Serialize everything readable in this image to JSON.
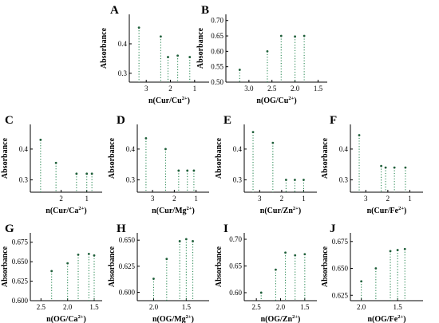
{
  "chart_data": [
    {
      "panel": "A",
      "type": "scatter",
      "xlabel": "n(Cur/Cu",
      "xlabel_sup": "2+",
      "xlabel_end": ")",
      "ylabel": "Absorbance",
      "xlim": [
        3.7,
        0.4
      ],
      "xreverse": true,
      "ylim": [
        0.27,
        0.5
      ],
      "xticks": [
        3,
        2,
        1
      ],
      "yticks": [
        0.3,
        0.4
      ],
      "x": [
        3.3,
        2.4,
        2.1,
        1.7,
        1.2
      ],
      "y": [
        0.455,
        0.425,
        0.355,
        0.36,
        0.355
      ],
      "color": "#2e8b57"
    },
    {
      "panel": "B",
      "type": "scatter",
      "xlabel": "n(OG/Cu",
      "xlabel_sup": "2+",
      "xlabel_end": ")",
      "ylabel": "Absorbance",
      "xlim": [
        3.5,
        1.3
      ],
      "xreverse": true,
      "ylim": [
        0.5,
        0.72
      ],
      "xticks": [
        3.0,
        2.5,
        2.0,
        1.5
      ],
      "yticks": [
        0.5,
        0.55,
        0.6,
        0.65,
        0.7
      ],
      "x": [
        3.2,
        2.6,
        2.3,
        2.0,
        1.8
      ],
      "y": [
        0.54,
        0.6,
        0.65,
        0.648,
        0.65
      ],
      "color": "#2e8b57"
    },
    {
      "panel": "C",
      "type": "scatter",
      "xlabel": "n(Cur/Ca",
      "xlabel_sup": "2+",
      "xlabel_end": ")",
      "ylabel": "Absorbance",
      "xlim": [
        3.2,
        0.4
      ],
      "xreverse": true,
      "ylim": [
        0.26,
        0.48
      ],
      "xticks": [
        2,
        1
      ],
      "yticks": [
        0.3,
        0.4
      ],
      "x": [
        2.8,
        2.2,
        1.4,
        1.0,
        0.8
      ],
      "y": [
        0.43,
        0.355,
        0.32,
        0.32,
        0.32
      ],
      "color": "#2e8b57"
    },
    {
      "panel": "D",
      "type": "scatter",
      "xlabel": "n(Cur/Mg",
      "xlabel_sup": "2+",
      "xlabel_end": ")",
      "ylabel": "Absorbance",
      "xlim": [
        3.7,
        0.4
      ],
      "xreverse": true,
      "ylim": [
        0.26,
        0.48
      ],
      "xticks": [
        3,
        2,
        1
      ],
      "yticks": [
        0.3,
        0.4
      ],
      "x": [
        3.3,
        2.4,
        1.8,
        1.4,
        1.1
      ],
      "y": [
        0.435,
        0.4,
        0.33,
        0.33,
        0.33
      ],
      "color": "#2e8b57"
    },
    {
      "panel": "E",
      "type": "scatter",
      "xlabel": "n(Cur/Zn",
      "xlabel_sup": "2+",
      "xlabel_end": ")",
      "ylabel": "Absorbance",
      "xlim": [
        3.7,
        0.4
      ],
      "xreverse": true,
      "ylim": [
        0.26,
        0.48
      ],
      "xticks": [
        3,
        2,
        1
      ],
      "yticks": [
        0.3,
        0.4
      ],
      "x": [
        3.3,
        2.4,
        1.8,
        1.4,
        1.0
      ],
      "y": [
        0.455,
        0.42,
        0.3,
        0.3,
        0.3
      ],
      "color": "#2e8b57"
    },
    {
      "panel": "F",
      "type": "scatter",
      "xlabel": "n(Cur/Fe",
      "xlabel_sup": "2+",
      "xlabel_end": ")",
      "ylabel": "Absorbance",
      "xlim": [
        3.7,
        0.4
      ],
      "xreverse": true,
      "ylim": [
        0.26,
        0.48
      ],
      "xticks": [
        3,
        2,
        1
      ],
      "yticks": [
        0.3,
        0.4
      ],
      "x": [
        3.3,
        2.3,
        2.1,
        1.7,
        1.2
      ],
      "y": [
        0.445,
        0.345,
        0.34,
        0.34,
        0.34
      ],
      "color": "#2e8b57"
    },
    {
      "panel": "G",
      "type": "scatter",
      "xlabel": "n(OG/Ca",
      "xlabel_sup": "2+",
      "xlabel_end": ")",
      "ylabel": "Absorbance",
      "xlim": [
        2.7,
        1.35
      ],
      "xreverse": true,
      "ylim": [
        0.6,
        0.687
      ],
      "xticks": [
        2.5,
        2.0,
        1.5
      ],
      "yticks": [
        0.6,
        0.625,
        0.65,
        0.675
      ],
      "x": [
        2.3,
        2.0,
        1.8,
        1.6,
        1.5
      ],
      "y": [
        0.638,
        0.648,
        0.659,
        0.66,
        0.658
      ],
      "color": "#2e8b57"
    },
    {
      "panel": "H",
      "type": "scatter",
      "xlabel": "n(OG/Mg",
      "xlabel_sup": "2+",
      "xlabel_end": ")",
      "ylabel": "Absorbance",
      "xlim": [
        2.25,
        1.15
      ],
      "xreverse": true,
      "ylim": [
        0.592,
        0.657
      ],
      "xticks": [
        2.0,
        1.5
      ],
      "yticks": [
        0.6,
        0.625,
        0.65
      ],
      "x": [
        2.0,
        1.8,
        1.6,
        1.5,
        1.4
      ],
      "y": [
        0.613,
        0.632,
        0.649,
        0.651,
        0.649
      ],
      "color": "#2e8b57"
    },
    {
      "panel": "I",
      "type": "scatter",
      "xlabel": "n(OG/Zn",
      "xlabel_sup": "2+",
      "xlabel_end": ")",
      "ylabel": "Absorbance",
      "xlim": [
        2.75,
        1.25
      ],
      "xreverse": true,
      "ylim": [
        0.585,
        0.712
      ],
      "xticks": [
        2.5,
        2.0,
        1.5
      ],
      "yticks": [
        0.6,
        0.65,
        0.7
      ],
      "x": [
        2.4,
        2.1,
        1.9,
        1.7,
        1.5
      ],
      "y": [
        0.6,
        0.643,
        0.675,
        0.67,
        0.672
      ],
      "color": "#2e8b57"
    },
    {
      "panel": "J",
      "type": "scatter",
      "xlabel": "n(OG/Fe",
      "xlabel_sup": "2+",
      "xlabel_end": ")",
      "ylabel": "Absorbance",
      "xlim": [
        2.15,
        1.15
      ],
      "xreverse": true,
      "ylim": [
        0.62,
        0.683
      ],
      "xticks": [
        2.0,
        1.5
      ],
      "yticks": [
        0.625,
        0.65,
        0.675
      ],
      "x": [
        2.0,
        1.8,
        1.6,
        1.5,
        1.4
      ],
      "y": [
        0.638,
        0.65,
        0.666,
        0.667,
        0.668
      ],
      "color": "#2e8b57"
    }
  ]
}
